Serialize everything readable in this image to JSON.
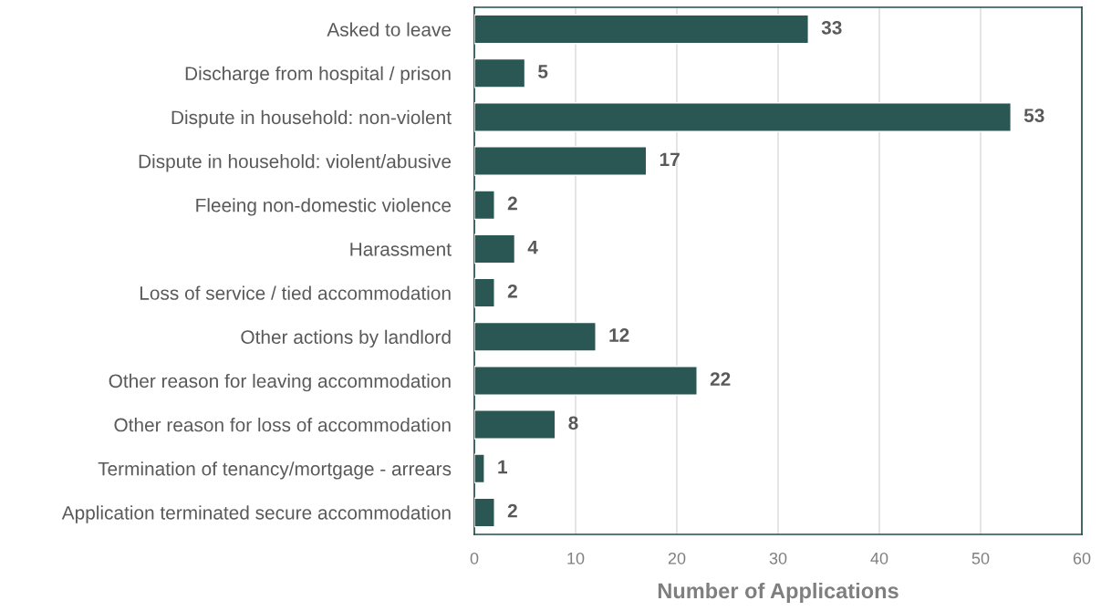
{
  "chart_data": {
    "type": "bar",
    "orientation": "horizontal",
    "xlabel": "Number of Applications",
    "categories": [
      "Asked to leave",
      "Discharge from hospital / prison",
      "Dispute in household: non-violent",
      "Dispute in household: violent/abusive",
      "Fleeing non-domestic violence",
      "Harassment",
      "Loss of service / tied accommodation",
      "Other actions by landlord",
      "Other reason for leaving accommodation",
      "Other reason for loss of accommodation",
      "Termination of tenancy/mortgage - arrears",
      "Application terminated secure accommodation"
    ],
    "values": [
      33,
      5,
      53,
      17,
      2,
      4,
      2,
      12,
      22,
      8,
      1,
      2
    ],
    "color": "#2a5753",
    "data_labels": true,
    "grid": "x",
    "legend": false,
    "xlim": [
      0,
      60
    ],
    "xticks": [
      0,
      10,
      20,
      30,
      40,
      50,
      60
    ]
  }
}
